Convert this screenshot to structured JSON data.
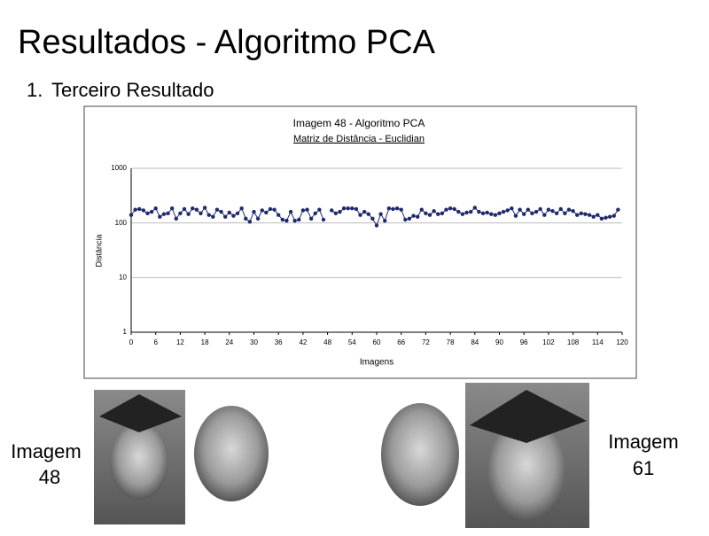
{
  "slide_title": "Resultados - Algoritmo PCA",
  "bullet": {
    "number": "1.",
    "text": "Terceiro Resultado"
  },
  "captions": {
    "left": [
      "Imagem",
      "48"
    ],
    "right": [
      "Imagem",
      "61"
    ]
  },
  "chart_data": {
    "type": "line",
    "title": "Imagem 48 - Algoritmo PCA",
    "subtitle": "Matriz de Distância - Euclidian",
    "x_label": "Imagens",
    "y_label": "Distância",
    "log_y": true,
    "grid": true,
    "xlim": [
      0,
      120
    ],
    "xticks": [
      0,
      6,
      12,
      18,
      24,
      30,
      36,
      42,
      48,
      54,
      60,
      66,
      72,
      78,
      84,
      90,
      96,
      102,
      108,
      114,
      120
    ],
    "ylim": [
      1,
      1000
    ],
    "yticks": [
      1,
      10,
      100,
      1000
    ],
    "x": [
      0,
      1,
      2,
      3,
      4,
      5,
      6,
      7,
      8,
      9,
      10,
      11,
      12,
      13,
      14,
      15,
      16,
      17,
      18,
      19,
      20,
      21,
      22,
      23,
      24,
      25,
      26,
      27,
      28,
      29,
      30,
      31,
      32,
      33,
      34,
      35,
      36,
      37,
      38,
      39,
      40,
      41,
      42,
      43,
      44,
      45,
      46,
      47,
      48,
      49,
      50,
      51,
      52,
      53,
      54,
      55,
      56,
      57,
      58,
      59,
      60,
      61,
      62,
      63,
      64,
      65,
      66,
      67,
      68,
      69,
      70,
      71,
      72,
      73,
      74,
      75,
      76,
      77,
      78,
      79,
      80,
      81,
      82,
      83,
      84,
      85,
      86,
      87,
      88,
      89,
      90,
      91,
      92,
      93,
      94,
      95,
      96,
      97,
      98,
      99,
      100,
      101,
      102,
      103,
      104,
      105,
      106,
      107,
      108,
      109,
      110,
      111,
      112,
      113,
      114,
      115,
      116,
      117,
      118,
      119
    ],
    "series": [
      {
        "name": "Distância",
        "color": "#1f2a6e",
        "values": [
          140,
          175,
          180,
          170,
          150,
          160,
          185,
          130,
          145,
          150,
          185,
          120,
          150,
          180,
          145,
          185,
          175,
          150,
          190,
          140,
          130,
          175,
          160,
          130,
          155,
          135,
          150,
          185,
          120,
          105,
          160,
          120,
          170,
          155,
          180,
          175,
          140,
          115,
          110,
          160,
          110,
          115,
          170,
          175,
          120,
          150,
          175,
          115,
          null,
          170,
          150,
          160,
          185,
          185,
          185,
          180,
          140,
          160,
          145,
          120,
          90,
          145,
          110,
          185,
          180,
          185,
          175,
          115,
          120,
          135,
          130,
          175,
          150,
          140,
          165,
          145,
          150,
          175,
          185,
          180,
          160,
          145,
          155,
          160,
          190,
          160,
          150,
          155,
          145,
          140,
          150,
          160,
          170,
          185,
          135,
          175,
          145,
          175,
          150,
          160,
          180,
          140,
          175,
          165,
          150,
          180,
          150,
          175,
          165,
          140,
          150,
          145,
          140,
          130,
          140,
          120,
          125,
          130,
          135,
          175
        ]
      }
    ]
  }
}
